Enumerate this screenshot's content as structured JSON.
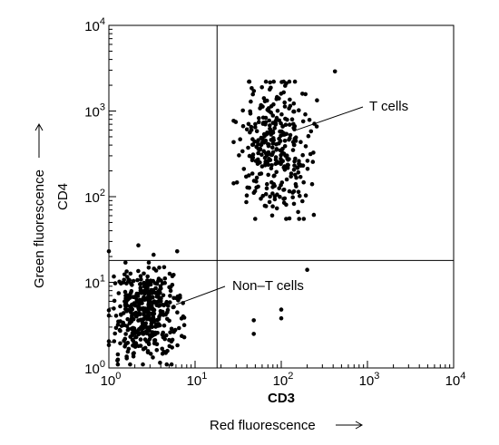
{
  "chart_data": {
    "type": "scatter",
    "title": "",
    "x_scale": "log",
    "y_scale": "log",
    "xlim": [
      1,
      10000
    ],
    "ylim": [
      1,
      10000
    ],
    "x_ticks": [
      {
        "value": 1,
        "base": "10",
        "exp": "0"
      },
      {
        "value": 10,
        "base": "10",
        "exp": "1"
      },
      {
        "value": 100,
        "base": "10",
        "exp": "2"
      },
      {
        "value": 1000,
        "base": "10",
        "exp": "3"
      },
      {
        "value": 10000,
        "base": "10",
        "exp": "4"
      }
    ],
    "y_ticks": [
      {
        "value": 1,
        "base": "10",
        "exp": "0"
      },
      {
        "value": 10,
        "base": "10",
        "exp": "1"
      },
      {
        "value": 100,
        "base": "10",
        "exp": "2"
      },
      {
        "value": 1000,
        "base": "10",
        "exp": "3"
      },
      {
        "value": 10000,
        "base": "10",
        "exp": "4"
      }
    ],
    "xlabel_marker": "CD3",
    "xlabel": "Red fluorescence",
    "ylabel_marker": "CD4",
    "ylabel": "Green fluorescence",
    "gate_x": 18,
    "gate_y": 18,
    "grid": false,
    "annotations": [
      {
        "text": "T cells",
        "target": [
          150,
          600
        ]
      },
      {
        "text": "Non–T cells",
        "target": [
          6,
          5.5
        ]
      }
    ],
    "clusters": [
      {
        "label": "T cells",
        "n": 330,
        "x_range": [
          28,
          260
        ],
        "y_range": [
          55,
          2200
        ]
      },
      {
        "label": "Non-T cells",
        "n": 420,
        "x_range": [
          1.0,
          7.5
        ],
        "y_range": [
          1.1,
          17
        ]
      }
    ],
    "outliers": [
      {
        "x": 420,
        "y": 2900
      },
      {
        "x": 1.0,
        "y": 23
      },
      {
        "x": 2.2,
        "y": 27
      },
      {
        "x": 3.3,
        "y": 21
      },
      {
        "x": 6.2,
        "y": 23
      },
      {
        "x": 48,
        "y": 3.6
      },
      {
        "x": 48,
        "y": 2.5
      },
      {
        "x": 100,
        "y": 4.8
      },
      {
        "x": 100,
        "y": 3.8
      },
      {
        "x": 200,
        "y": 14
      }
    ]
  }
}
